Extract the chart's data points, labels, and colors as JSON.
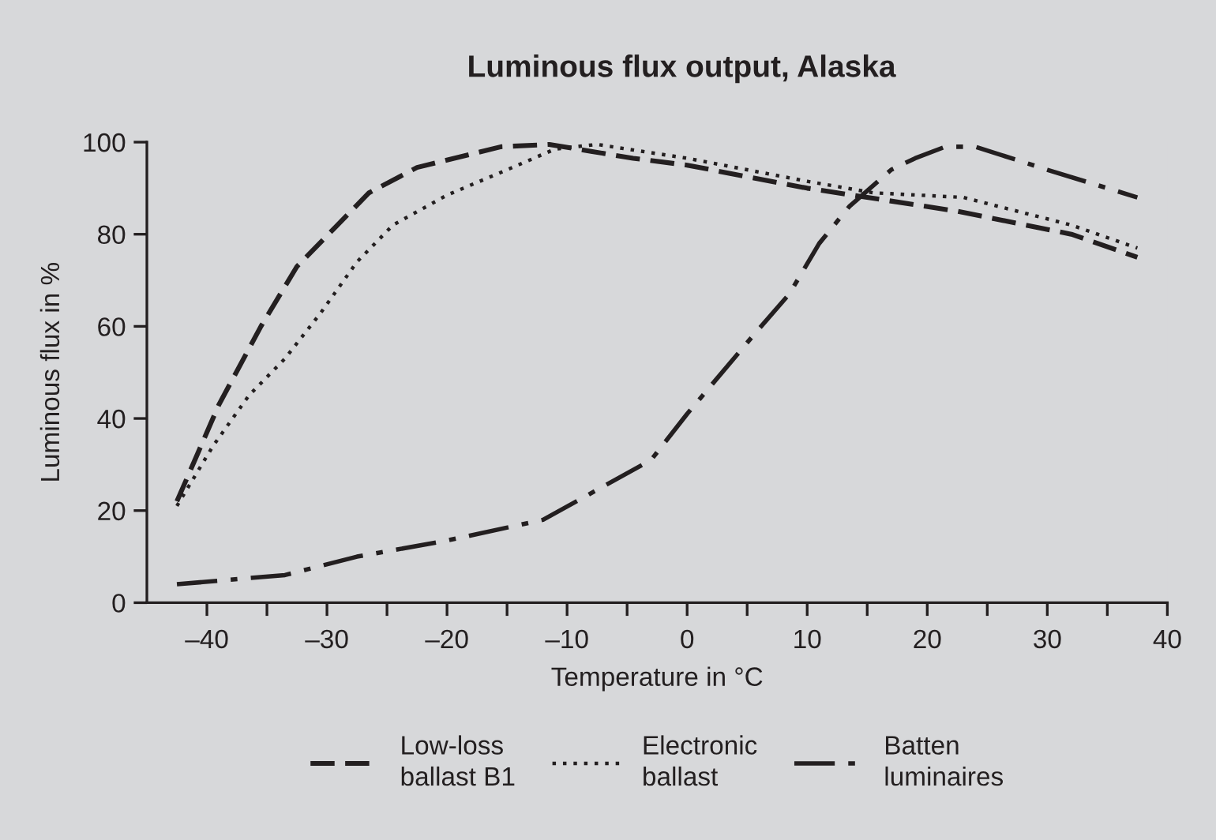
{
  "chart_data": {
    "type": "line",
    "title": "Luminous flux output, Alaska",
    "xlabel": "Temperature in °C",
    "ylabel": "Luminous flux in %",
    "xlim": [
      -45,
      40
    ],
    "xticks": [
      {
        "value": -40,
        "label": "–40"
      },
      {
        "value": -35,
        "label": null
      },
      {
        "value": -30,
        "label": "–30"
      },
      {
        "value": -25,
        "label": null
      },
      {
        "value": -20,
        "label": "–20"
      },
      {
        "value": -15,
        "label": null
      },
      {
        "value": -10,
        "label": "–10"
      },
      {
        "value": -5,
        "label": null
      },
      0,
      {
        "value": 5,
        "label": null
      },
      10,
      {
        "value": 15,
        "label": null
      },
      20,
      {
        "value": 25,
        "label": null
      },
      30,
      {
        "value": 35,
        "label": null
      },
      40
    ],
    "ylim": [
      0,
      100
    ],
    "yticks": [
      0,
      20,
      40,
      60,
      80,
      100
    ],
    "grid": false,
    "legend": "bottom",
    "marker": "none",
    "series": [
      {
        "name": "Low-loss\nballast B1",
        "color": "#231f20",
        "line_style": "dashed",
        "x": [
          -42.5,
          -39,
          -35.5,
          -32.5,
          -29.5,
          -26.5,
          -22.5,
          -15.5,
          -11.5,
          -8,
          -4.5,
          0,
          10,
          15,
          22.5,
          32,
          37.5
        ],
        "values": [
          22,
          43,
          60,
          73,
          81,
          89,
          94.5,
          99,
          99.5,
          98,
          96.5,
          95,
          90,
          88,
          85,
          80,
          75
        ]
      },
      {
        "name": "Electronic\nballast",
        "color": "#231f20",
        "line_style": "dotted",
        "x": [
          -42.5,
          -39.5,
          -36.5,
          -33.5,
          -30.5,
          -27.5,
          -24.5,
          -20,
          -15,
          -11,
          -7.5,
          0,
          10,
          15.5,
          23,
          32,
          37.5
        ],
        "values": [
          21,
          34,
          45,
          53,
          63,
          74,
          82,
          88.5,
          94,
          98.5,
          99.5,
          96.5,
          91.5,
          89,
          88,
          82,
          77
        ]
      },
      {
        "name": "Batten\nluminaires",
        "color": "#231f20",
        "line_style": "dashdot",
        "x": [
          -42.5,
          -33.5,
          -27.5,
          -20,
          -12,
          -3,
          0,
          5.5,
          8.5,
          11,
          13.5,
          17,
          19,
          21.5,
          24,
          30,
          37.5
        ],
        "values": [
          4,
          6,
          10,
          13.5,
          18,
          31,
          41,
          58,
          67,
          78,
          86,
          94,
          96.5,
          99,
          99,
          94,
          88
        ]
      }
    ]
  }
}
